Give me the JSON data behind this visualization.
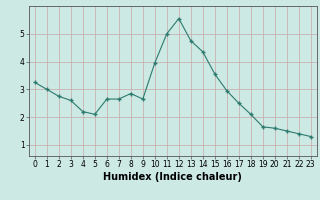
{
  "x": [
    0,
    1,
    2,
    3,
    4,
    5,
    6,
    7,
    8,
    9,
    10,
    11,
    12,
    13,
    14,
    15,
    16,
    17,
    18,
    19,
    20,
    21,
    22,
    23
  ],
  "y": [
    3.25,
    3.0,
    2.75,
    2.6,
    2.2,
    2.1,
    2.65,
    2.65,
    2.85,
    2.65,
    3.95,
    5.0,
    5.55,
    4.75,
    4.35,
    3.55,
    2.95,
    2.5,
    2.1,
    1.65,
    1.6,
    1.5,
    1.4,
    1.3
  ],
  "line_color": "#2d7a6e",
  "marker": "P",
  "marker_size": 2.5,
  "bg_color": "#cce9e4",
  "grid_color": "#c8a8a8",
  "axis_color": "#555555",
  "xlabel": "Humidex (Indice chaleur)",
  "xlabel_fontsize": 7,
  "tick_fontsize": 5.5,
  "xlim": [
    -0.5,
    23.5
  ],
  "ylim": [
    0.6,
    6.0
  ],
  "yticks": [
    1,
    2,
    3,
    4,
    5
  ],
  "xticks": [
    0,
    1,
    2,
    3,
    4,
    5,
    6,
    7,
    8,
    9,
    10,
    11,
    12,
    13,
    14,
    15,
    16,
    17,
    18,
    19,
    20,
    21,
    22,
    23
  ]
}
